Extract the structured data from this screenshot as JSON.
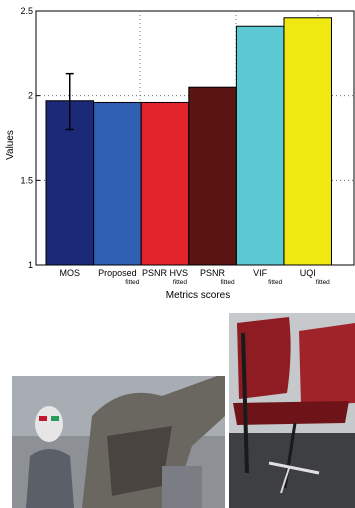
{
  "chart_data": {
    "type": "bar",
    "categories": [
      "MOS",
      "Proposed",
      "PSNR HVS",
      "PSNR",
      "VIF",
      "UQI"
    ],
    "category_subscripts": [
      "",
      "fitted",
      "fitted",
      "fitted",
      "fitted",
      "fitted"
    ],
    "values": [
      1.97,
      1.96,
      1.96,
      2.05,
      2.41,
      2.46
    ],
    "error_bars": [
      {
        "category": "MOS",
        "low": 1.8,
        "high": 2.13
      }
    ],
    "bar_colors": [
      "#1b2a78",
      "#2f5fb0",
      "#e3232a",
      "#5a1513",
      "#5cc8d4",
      "#f0e811"
    ],
    "ylabel": "Values",
    "xlabel": "Metrics scores",
    "ylim": [
      1,
      2.5
    ],
    "yticks": [
      "1",
      "1.5",
      "2",
      "2.5"
    ],
    "grid": "dotted"
  },
  "photos": [
    "left-photo-mannequin-scene",
    "right-photo-chair-scene"
  ]
}
